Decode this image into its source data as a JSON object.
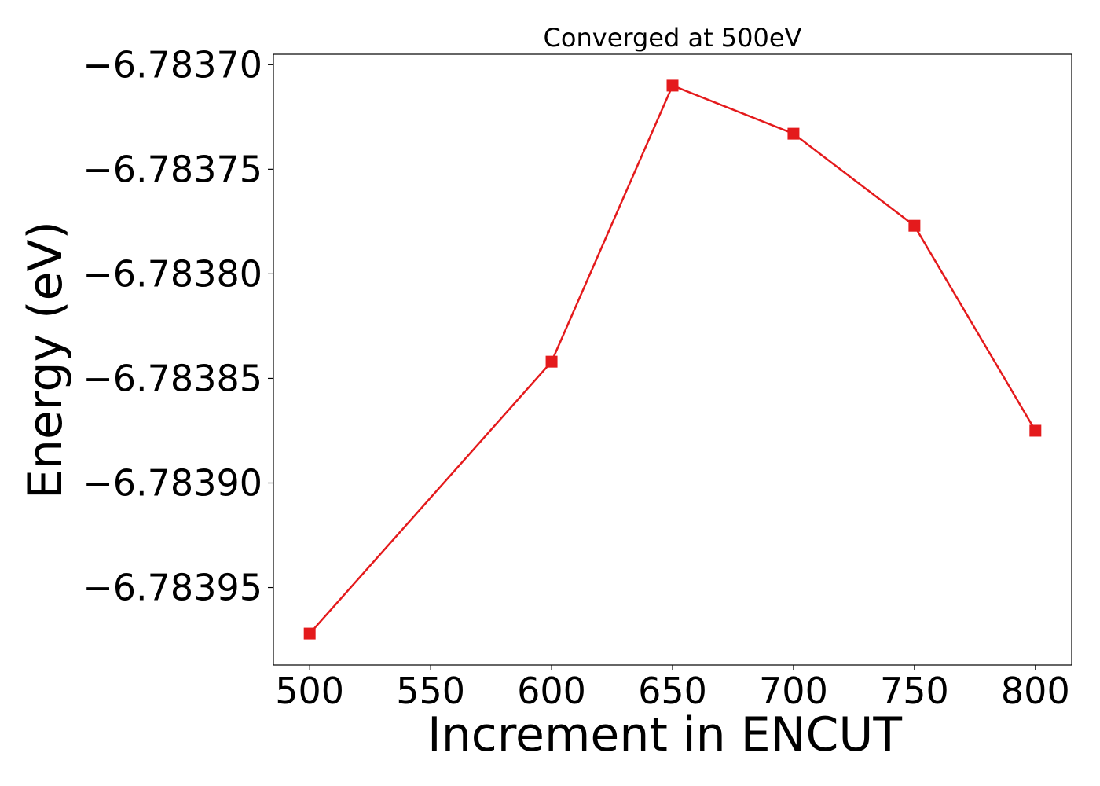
{
  "chart_data": {
    "type": "line",
    "title": "Converged at 500eV",
    "xlabel": "Increment in ENCUT",
    "ylabel": "Energy (eV)",
    "x": [
      500,
      600,
      650,
      700,
      750,
      800
    ],
    "series": [
      {
        "values": [
          -6.783972,
          -6.783842,
          -6.78371,
          -6.783733,
          -6.783777,
          -6.783875
        ],
        "color": "#e41a1c",
        "marker": "square"
      }
    ],
    "xlim": [
      485,
      815
    ],
    "ylim": [
      -6.783987,
      -6.783695
    ],
    "xticks": [
      500,
      550,
      600,
      650,
      700,
      750,
      800
    ],
    "xtick_labels": [
      "500",
      "550",
      "600",
      "650",
      "700",
      "750",
      "800"
    ],
    "yticks": [
      -6.7837,
      -6.78375,
      -6.7838,
      -6.78385,
      -6.7839,
      -6.78395
    ],
    "ytick_labels": [
      "−6.78370",
      "−6.78375",
      "−6.78380",
      "−6.78385",
      "−6.78390",
      "−6.78395"
    ],
    "grid": false,
    "legend": "none"
  }
}
